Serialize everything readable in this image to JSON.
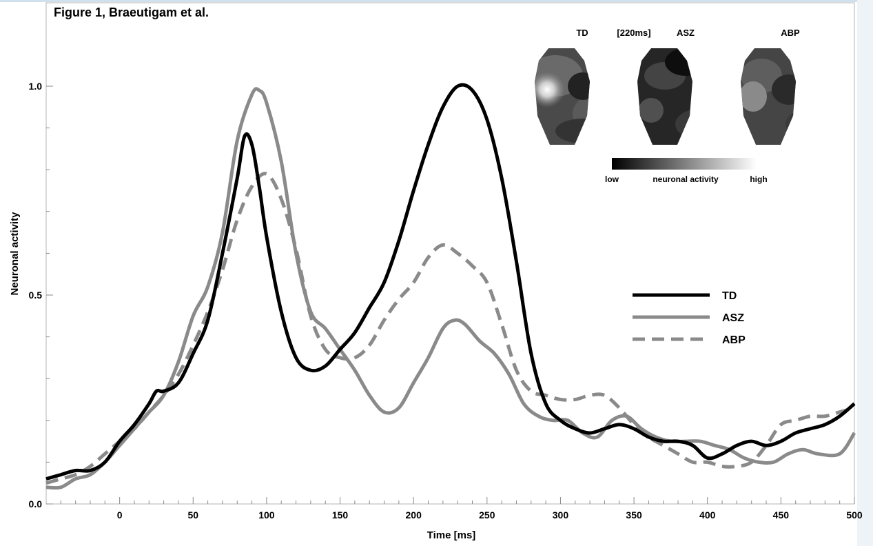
{
  "figure_title": "Figure 1, Braeutigam et al.",
  "chart_data": {
    "type": "line",
    "title": "",
    "xlabel": "Time [ms]",
    "ylabel": "Neuronal activity",
    "xlim": [
      -50,
      500
    ],
    "ylim": [
      0,
      1.0
    ],
    "x_ticks": [
      0,
      50,
      100,
      150,
      200,
      250,
      300,
      350,
      400,
      450,
      500
    ],
    "y_ticks": [
      0.0,
      0.5,
      1.0
    ],
    "y_tick_labels": [
      "0.0",
      "0.5",
      "1.0"
    ],
    "grid": false,
    "legend_position": "right",
    "series": [
      {
        "name": "TD",
        "color": "#000000",
        "dash": "solid",
        "points": [
          [
            -50,
            0.06
          ],
          [
            -40,
            0.07
          ],
          [
            -30,
            0.08
          ],
          [
            -20,
            0.08
          ],
          [
            -10,
            0.1
          ],
          [
            0,
            0.15
          ],
          [
            10,
            0.19
          ],
          [
            20,
            0.24
          ],
          [
            25,
            0.27
          ],
          [
            30,
            0.27
          ],
          [
            40,
            0.29
          ],
          [
            50,
            0.36
          ],
          [
            60,
            0.44
          ],
          [
            70,
            0.6
          ],
          [
            80,
            0.78
          ],
          [
            85,
            0.88
          ],
          [
            90,
            0.86
          ],
          [
            95,
            0.76
          ],
          [
            100,
            0.64
          ],
          [
            110,
            0.46
          ],
          [
            120,
            0.35
          ],
          [
            130,
            0.32
          ],
          [
            140,
            0.33
          ],
          [
            150,
            0.37
          ],
          [
            160,
            0.41
          ],
          [
            170,
            0.47
          ],
          [
            180,
            0.53
          ],
          [
            190,
            0.63
          ],
          [
            200,
            0.75
          ],
          [
            210,
            0.86
          ],
          [
            220,
            0.95
          ],
          [
            230,
            1.0
          ],
          [
            240,
            0.99
          ],
          [
            250,
            0.92
          ],
          [
            260,
            0.78
          ],
          [
            270,
            0.58
          ],
          [
            280,
            0.36
          ],
          [
            290,
            0.24
          ],
          [
            300,
            0.2
          ],
          [
            310,
            0.18
          ],
          [
            320,
            0.17
          ],
          [
            330,
            0.18
          ],
          [
            340,
            0.19
          ],
          [
            350,
            0.18
          ],
          [
            360,
            0.16
          ],
          [
            370,
            0.15
          ],
          [
            380,
            0.15
          ],
          [
            390,
            0.14
          ],
          [
            400,
            0.11
          ],
          [
            410,
            0.12
          ],
          [
            420,
            0.14
          ],
          [
            430,
            0.15
          ],
          [
            440,
            0.14
          ],
          [
            450,
            0.15
          ],
          [
            460,
            0.17
          ],
          [
            470,
            0.18
          ],
          [
            480,
            0.19
          ],
          [
            490,
            0.21
          ],
          [
            500,
            0.24
          ]
        ]
      },
      {
        "name": "ASZ",
        "color": "#8a8a8a",
        "dash": "solid",
        "points": [
          [
            -50,
            0.04
          ],
          [
            -40,
            0.04
          ],
          [
            -30,
            0.06
          ],
          [
            -20,
            0.07
          ],
          [
            -10,
            0.1
          ],
          [
            0,
            0.14
          ],
          [
            10,
            0.18
          ],
          [
            20,
            0.22
          ],
          [
            30,
            0.26
          ],
          [
            40,
            0.34
          ],
          [
            50,
            0.45
          ],
          [
            60,
            0.52
          ],
          [
            70,
            0.65
          ],
          [
            80,
            0.87
          ],
          [
            90,
            0.98
          ],
          [
            95,
            0.99
          ],
          [
            100,
            0.96
          ],
          [
            110,
            0.82
          ],
          [
            120,
            0.6
          ],
          [
            130,
            0.46
          ],
          [
            140,
            0.42
          ],
          [
            150,
            0.37
          ],
          [
            160,
            0.32
          ],
          [
            170,
            0.26
          ],
          [
            180,
            0.22
          ],
          [
            190,
            0.23
          ],
          [
            200,
            0.29
          ],
          [
            210,
            0.35
          ],
          [
            220,
            0.42
          ],
          [
            228,
            0.44
          ],
          [
            235,
            0.43
          ],
          [
            245,
            0.39
          ],
          [
            255,
            0.36
          ],
          [
            265,
            0.31
          ],
          [
            275,
            0.24
          ],
          [
            285,
            0.21
          ],
          [
            295,
            0.2
          ],
          [
            305,
            0.2
          ],
          [
            315,
            0.17
          ],
          [
            325,
            0.16
          ],
          [
            335,
            0.2
          ],
          [
            345,
            0.21
          ],
          [
            355,
            0.18
          ],
          [
            365,
            0.16
          ],
          [
            375,
            0.15
          ],
          [
            385,
            0.15
          ],
          [
            395,
            0.15
          ],
          [
            405,
            0.14
          ],
          [
            415,
            0.13
          ],
          [
            425,
            0.11
          ],
          [
            435,
            0.1
          ],
          [
            445,
            0.1
          ],
          [
            455,
            0.12
          ],
          [
            465,
            0.13
          ],
          [
            475,
            0.12
          ],
          [
            490,
            0.12
          ],
          [
            500,
            0.17
          ]
        ]
      },
      {
        "name": "ABP",
        "color": "#8a8a8a",
        "dash": "dashed",
        "points": [
          [
            -50,
            0.05
          ],
          [
            -40,
            0.06
          ],
          [
            -30,
            0.07
          ],
          [
            -20,
            0.09
          ],
          [
            -10,
            0.12
          ],
          [
            0,
            0.15
          ],
          [
            10,
            0.18
          ],
          [
            20,
            0.22
          ],
          [
            30,
            0.26
          ],
          [
            40,
            0.31
          ],
          [
            50,
            0.38
          ],
          [
            60,
            0.46
          ],
          [
            70,
            0.56
          ],
          [
            80,
            0.68
          ],
          [
            90,
            0.76
          ],
          [
            100,
            0.79
          ],
          [
            110,
            0.73
          ],
          [
            120,
            0.61
          ],
          [
            130,
            0.45
          ],
          [
            140,
            0.37
          ],
          [
            150,
            0.35
          ],
          [
            160,
            0.35
          ],
          [
            170,
            0.38
          ],
          [
            180,
            0.44
          ],
          [
            190,
            0.49
          ],
          [
            200,
            0.53
          ],
          [
            210,
            0.59
          ],
          [
            220,
            0.62
          ],
          [
            230,
            0.6
          ],
          [
            240,
            0.57
          ],
          [
            250,
            0.53
          ],
          [
            260,
            0.43
          ],
          [
            270,
            0.32
          ],
          [
            280,
            0.27
          ],
          [
            290,
            0.26
          ],
          [
            300,
            0.25
          ],
          [
            310,
            0.25
          ],
          [
            320,
            0.26
          ],
          [
            330,
            0.26
          ],
          [
            340,
            0.23
          ],
          [
            350,
            0.19
          ],
          [
            360,
            0.16
          ],
          [
            370,
            0.14
          ],
          [
            380,
            0.12
          ],
          [
            390,
            0.1
          ],
          [
            400,
            0.1
          ],
          [
            410,
            0.09
          ],
          [
            420,
            0.09
          ],
          [
            430,
            0.1
          ],
          [
            440,
            0.14
          ],
          [
            450,
            0.19
          ],
          [
            460,
            0.2
          ],
          [
            470,
            0.21
          ],
          [
            480,
            0.21
          ],
          [
            490,
            0.22
          ],
          [
            500,
            0.23
          ]
        ]
      }
    ]
  },
  "inset": {
    "map_labels": [
      "TD",
      "ASZ",
      "ABP"
    ],
    "time_label": "[220ms]",
    "colorbar": {
      "low_label": "low",
      "mid_label": "neuronal activity",
      "high_label": "high"
    }
  }
}
